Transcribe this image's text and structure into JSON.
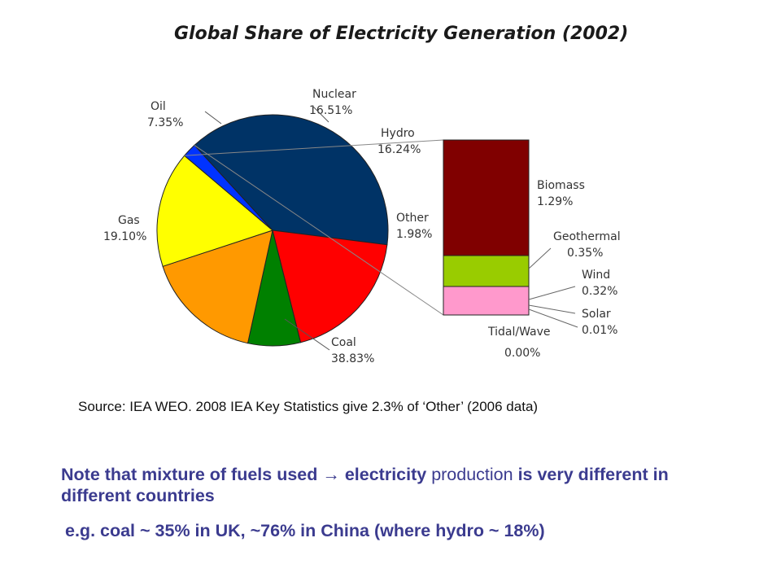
{
  "chart_data": {
    "type": "pie",
    "title": "Global Share of Electricity Generation (2002)",
    "slices": [
      {
        "label": "Coal",
        "value": 38.83,
        "value_label": "38.83%",
        "color": "#003366"
      },
      {
        "label": "Gas",
        "value": 19.1,
        "value_label": "19.10%",
        "color": "#ff0000"
      },
      {
        "label": "Oil",
        "value": 7.35,
        "value_label": "7.35%",
        "color": "#008000"
      },
      {
        "label": "Nuclear",
        "value": 16.51,
        "value_label": "16.51%",
        "color": "#ff9900"
      },
      {
        "label": "Hydro",
        "value": 16.24,
        "value_label": "16.24%",
        "color": "#ffff00"
      },
      {
        "label": "Other",
        "value": 1.98,
        "value_label": "1.98%",
        "color": "#0033ff"
      }
    ],
    "other_breakdown": {
      "type": "stacked-bar",
      "segments": [
        {
          "label": "Biomass",
          "value": 1.29,
          "value_label": "1.29%",
          "color": "#800000"
        },
        {
          "label": "Geothermal",
          "value": 0.35,
          "value_label": "0.35%",
          "color": "#99cc00"
        },
        {
          "label": "Wind",
          "value": 0.32,
          "value_label": "0.32%",
          "color": "#ff99cc"
        },
        {
          "label": "Solar",
          "value": 0.01,
          "value_label": "0.01%",
          "color": "#ff99cc"
        },
        {
          "label": "Tidal/Wave",
          "value": 0.0,
          "value_label": "0.00%",
          "color": "#ff99cc"
        }
      ]
    }
  },
  "source": "Source: IEA WEO.  2008 IEA Key Statistics give 2.3% of ‘Other’ (2006 data)",
  "note": {
    "part1": "Note that mixture of fuels used → electricity ",
    "part2": "production",
    "part3": " is very different in different countries"
  },
  "example": "e.g. coal ~ 35% in UK, ~76% in China (where hydro ~ 18%)"
}
